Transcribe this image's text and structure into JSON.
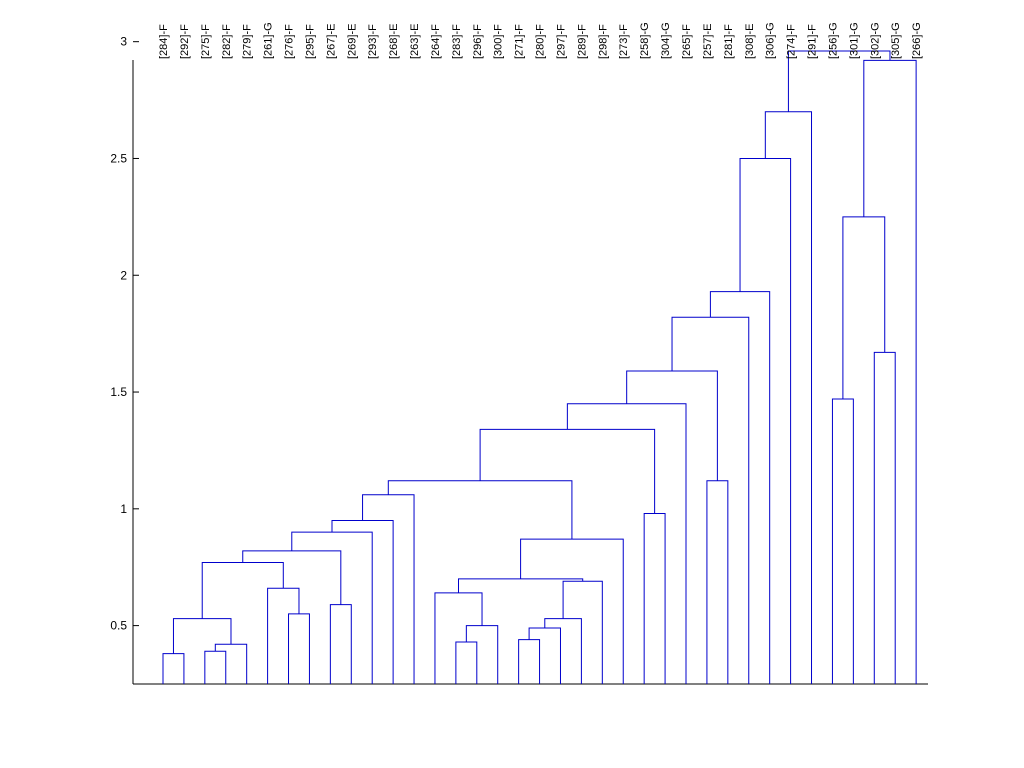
{
  "chart_data": {
    "type": "dendrogram",
    "title": "",
    "xlabel": "",
    "ylabel": "",
    "ylim": [
      0.25,
      3.05
    ],
    "y_ticks": [
      0.5,
      1,
      1.5,
      2,
      2.5,
      3
    ],
    "y_tick_labels": [
      "0.5",
      "1",
      "1.5",
      "2",
      "2.5",
      "3"
    ],
    "grid": false,
    "link_color": "#0000cc",
    "leaves": [
      "[284]-F",
      "[292]-F",
      "[275]-F",
      "[282]-F",
      "[279]-F",
      "[261]-G",
      "[276]-F",
      "[295]-F",
      "[267]-E",
      "[269]-E",
      "[293]-F",
      "[268]-E",
      "[263]-E",
      "[264]-F",
      "[283]-F",
      "[296]-F",
      "[300]-F",
      "[271]-F",
      "[280]-F",
      "[297]-F",
      "[289]-F",
      "[298]-F",
      "[273]-F",
      "[258]-G",
      "[304]-G",
      "[265]-F",
      "[257]-E",
      "[281]-F",
      "[308]-E",
      "[306]-G",
      "[274]-F",
      "[291]-F",
      "[256]-G",
      "[301]-G",
      "[302]-G",
      "[305]-G",
      "[266]-G"
    ],
    "merges": [
      {
        "left": 0,
        "right": 1,
        "height": 0.38
      },
      {
        "left": 2,
        "right": 3,
        "height": 0.39
      },
      {
        "left": "m1",
        "right": 4,
        "height": 0.42
      },
      {
        "left": "m0",
        "right": "m2",
        "height": 0.53
      },
      {
        "left": 6,
        "right": 7,
        "height": 0.55
      },
      {
        "left": 5,
        "right": "m4",
        "height": 0.66
      },
      {
        "left": "m3",
        "right": "m5",
        "height": 0.77
      },
      {
        "left": 8,
        "right": 9,
        "height": 0.59
      },
      {
        "left": "m6",
        "right": "m7",
        "height": 0.82
      },
      {
        "left": "m8",
        "right": 10,
        "height": 0.9
      },
      {
        "left": "m9",
        "right": 11,
        "height": 0.95
      },
      {
        "left": "m10",
        "right": 12,
        "height": 1.06
      },
      {
        "left": 14,
        "right": 15,
        "height": 0.43
      },
      {
        "left": "m12",
        "right": 16,
        "height": 0.5
      },
      {
        "left": 13,
        "right": "m13",
        "height": 0.64
      },
      {
        "left": 17,
        "right": 18,
        "height": 0.44
      },
      {
        "left": "m15",
        "right": 19,
        "height": 0.49
      },
      {
        "left": "m16",
        "right": 20,
        "height": 0.53
      },
      {
        "left": "m17",
        "right": 21,
        "height": 0.69
      },
      {
        "left": "m14",
        "right": "m18",
        "height": 0.7
      },
      {
        "left": "m19",
        "right": 22,
        "height": 0.87
      },
      {
        "left": "m11",
        "right": "m20",
        "height": 1.12
      },
      {
        "left": 23,
        "right": 24,
        "height": 0.98
      },
      {
        "left": "m21",
        "right": "m22",
        "height": 1.34
      },
      {
        "left": "m23",
        "right": 25,
        "height": 1.45
      },
      {
        "left": 26,
        "right": 27,
        "height": 1.12
      },
      {
        "left": "m24",
        "right": "m25",
        "height": 1.59
      },
      {
        "left": "m26",
        "right": 28,
        "height": 1.82
      },
      {
        "left": "m27",
        "right": 29,
        "height": 1.93
      },
      {
        "left": "m28",
        "right": 30,
        "height": 2.5
      },
      {
        "left": "m29",
        "right": 31,
        "height": 2.7
      },
      {
        "left": 32,
        "right": 33,
        "height": 1.47
      },
      {
        "left": 34,
        "right": 35,
        "height": 1.67
      },
      {
        "left": "m31",
        "right": "m32",
        "height": 2.25
      },
      {
        "left": "m33",
        "right": 36,
        "height": 2.92
      },
      {
        "left": "m30",
        "right": "m34",
        "height": 2.96
      }
    ]
  }
}
